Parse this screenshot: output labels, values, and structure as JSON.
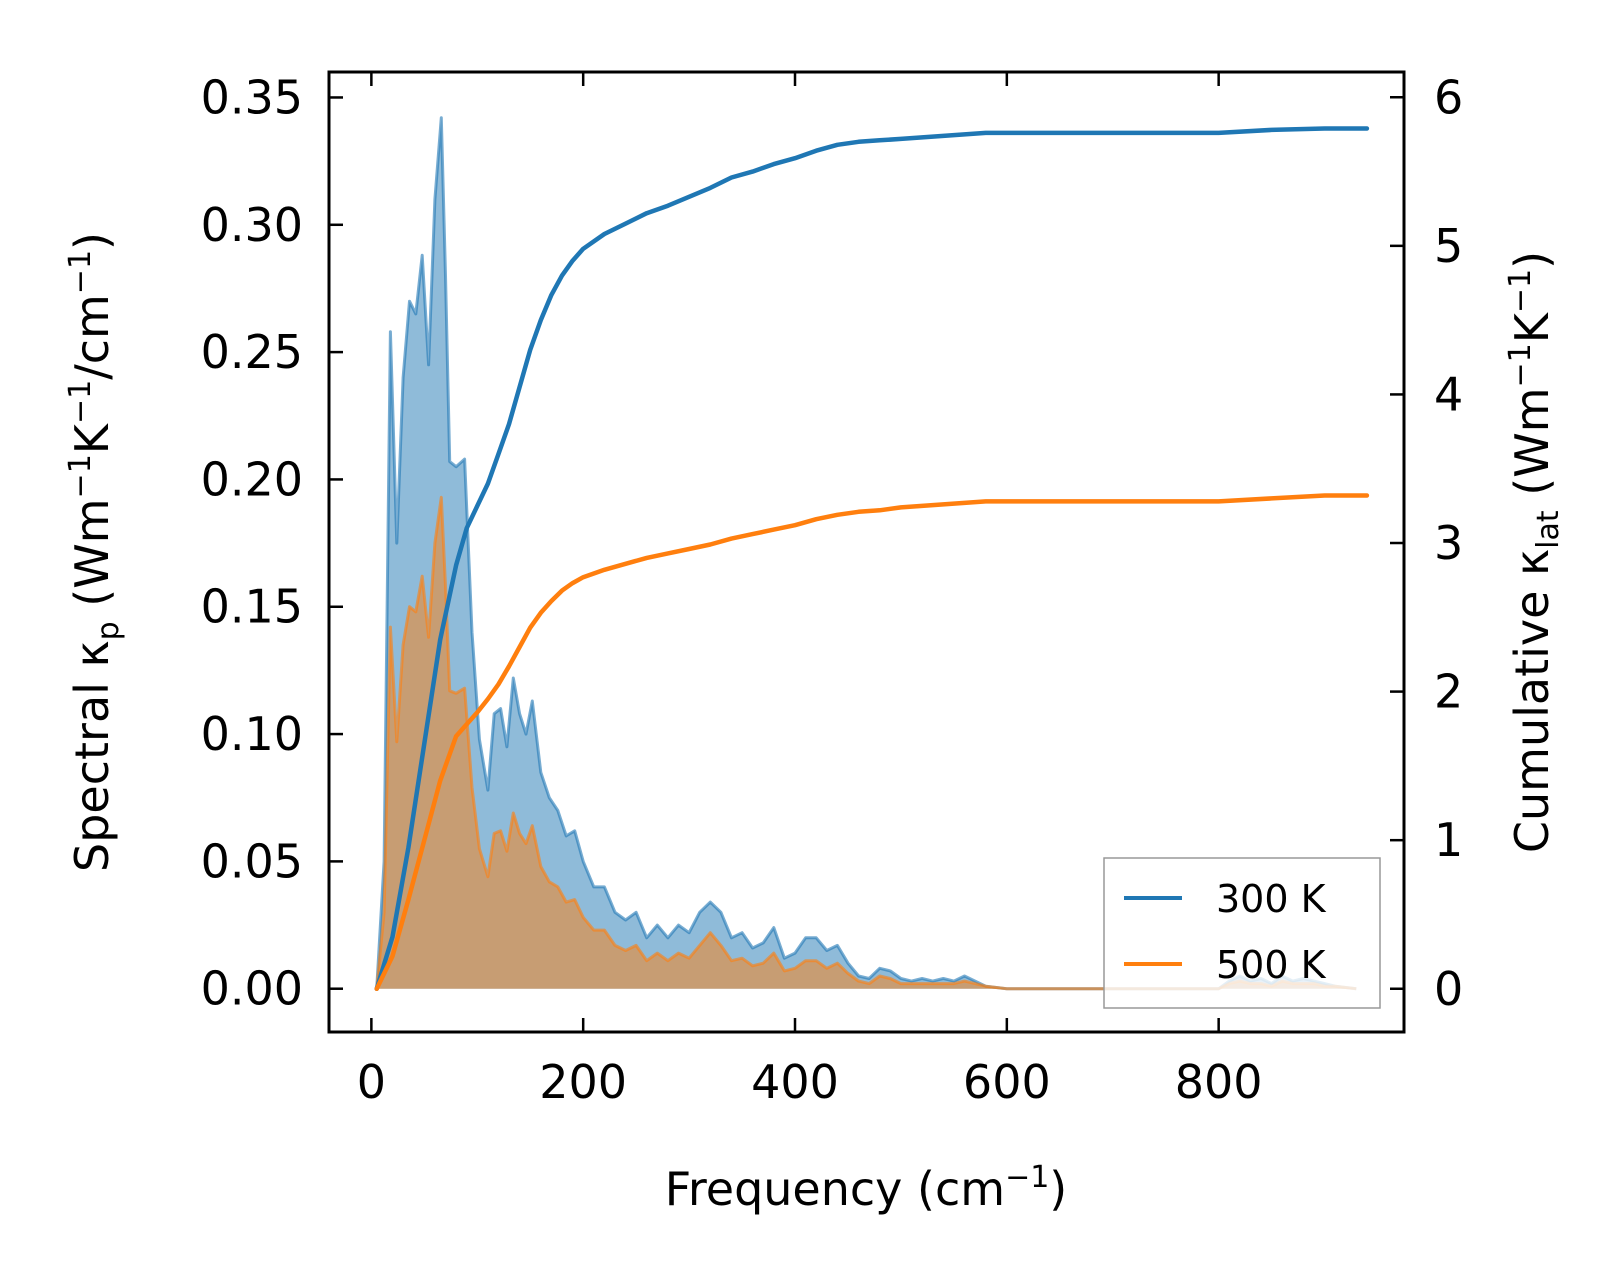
{
  "chart_data": {
    "type": "line",
    "title": "",
    "xlabel": "Frequency (cm",
    "xlabel_sup": "−1",
    "xlabel_end": ")",
    "ylabel_left": "Spectral κ",
    "ylabel_left_sub": "p",
    "ylabel_left_unit": " (Wm",
    "ylabel_left_sup1": "−1",
    "ylabel_left_unit2": "K",
    "ylabel_left_sup2": "−1",
    "ylabel_left_unit3": "/cm",
    "ylabel_left_sup3": "−1",
    "ylabel_left_end": ")",
    "ylabel_right": "Cumulative κ",
    "ylabel_right_sub": "lat",
    "ylabel_right_unit": " (Wm",
    "ylabel_right_sup1": "−1",
    "ylabel_right_unit2": "K",
    "ylabel_right_sup2": "−1",
    "ylabel_right_end": ")",
    "xlim": [
      -40,
      975
    ],
    "ylim_left": [
      -0.017,
      0.36
    ],
    "ylim_right": [
      -0.291,
      6.17
    ],
    "x_ticks": [
      0,
      200,
      400,
      600,
      800
    ],
    "x_tick_labels": [
      "0",
      "200",
      "400",
      "600",
      "800"
    ],
    "y_left_ticks": [
      0.0,
      0.05,
      0.1,
      0.15,
      0.2,
      0.25,
      0.3,
      0.35
    ],
    "y_left_tick_labels": [
      "0.00",
      "0.05",
      "0.10",
      "0.15",
      "0.20",
      "0.25",
      "0.30",
      "0.35"
    ],
    "y_right_ticks": [
      0,
      1,
      2,
      3,
      4,
      5,
      6
    ],
    "y_right_tick_labels": [
      "0",
      "1",
      "2",
      "3",
      "4",
      "5",
      "6"
    ],
    "legend": {
      "position": "lower-right",
      "entries": [
        "300 K",
        "500 K"
      ]
    },
    "colors": {
      "300 K": "#1f77b4",
      "500 K": "#ff7f0e"
    },
    "spectral_series": [
      {
        "name": "300 K",
        "axis": "left",
        "x": [
          5,
          12,
          18,
          24,
          30,
          36,
          42,
          48,
          54,
          60,
          66,
          70,
          74,
          80,
          88,
          95,
          102,
          110,
          116,
          122,
          128,
          134,
          140,
          146,
          152,
          160,
          168,
          176,
          184,
          192,
          200,
          210,
          220,
          230,
          240,
          250,
          260,
          270,
          280,
          290,
          300,
          310,
          320,
          330,
          340,
          350,
          360,
          370,
          380,
          390,
          400,
          410,
          420,
          430,
          440,
          450,
          460,
          470,
          480,
          490,
          500,
          510,
          520,
          530,
          540,
          550,
          560,
          570,
          580,
          600,
          650,
          700,
          750,
          790,
          800,
          810,
          820,
          830,
          840,
          850,
          860,
          870,
          880,
          890,
          900,
          910,
          930
        ],
        "y": [
          0.0,
          0.05,
          0.258,
          0.175,
          0.24,
          0.27,
          0.265,
          0.288,
          0.245,
          0.31,
          0.342,
          0.28,
          0.207,
          0.205,
          0.208,
          0.14,
          0.098,
          0.078,
          0.108,
          0.11,
          0.095,
          0.122,
          0.108,
          0.1,
          0.113,
          0.085,
          0.075,
          0.07,
          0.06,
          0.062,
          0.05,
          0.04,
          0.04,
          0.03,
          0.027,
          0.03,
          0.02,
          0.025,
          0.02,
          0.025,
          0.022,
          0.03,
          0.034,
          0.03,
          0.02,
          0.022,
          0.016,
          0.018,
          0.024,
          0.012,
          0.014,
          0.02,
          0.02,
          0.015,
          0.017,
          0.01,
          0.005,
          0.004,
          0.008,
          0.007,
          0.004,
          0.003,
          0.004,
          0.003,
          0.004,
          0.003,
          0.005,
          0.003,
          0.001,
          0.0,
          0.0,
          0.0,
          0.0,
          0.0,
          0.0,
          0.003,
          0.005,
          0.003,
          0.004,
          0.002,
          0.005,
          0.003,
          0.004,
          0.003,
          0.002,
          0.001,
          0.0
        ]
      },
      {
        "name": "500 K",
        "axis": "left",
        "x": [
          5,
          12,
          18,
          24,
          30,
          36,
          42,
          48,
          54,
          60,
          66,
          70,
          74,
          80,
          88,
          95,
          102,
          110,
          116,
          122,
          128,
          134,
          140,
          146,
          152,
          160,
          168,
          176,
          184,
          192,
          200,
          210,
          220,
          230,
          240,
          250,
          260,
          270,
          280,
          290,
          300,
          310,
          320,
          330,
          340,
          350,
          360,
          370,
          380,
          390,
          400,
          410,
          420,
          430,
          440,
          450,
          460,
          470,
          480,
          490,
          500,
          510,
          520,
          530,
          540,
          550,
          560,
          570,
          580,
          600,
          650,
          700,
          750,
          790,
          800,
          810,
          820,
          830,
          840,
          850,
          860,
          870,
          880,
          890,
          900,
          910,
          930
        ],
        "y": [
          0.0,
          0.03,
          0.142,
          0.097,
          0.135,
          0.15,
          0.148,
          0.162,
          0.138,
          0.175,
          0.193,
          0.158,
          0.117,
          0.116,
          0.118,
          0.079,
          0.055,
          0.044,
          0.061,
          0.062,
          0.054,
          0.069,
          0.061,
          0.057,
          0.064,
          0.048,
          0.042,
          0.04,
          0.034,
          0.035,
          0.028,
          0.023,
          0.023,
          0.017,
          0.015,
          0.017,
          0.011,
          0.014,
          0.011,
          0.014,
          0.012,
          0.017,
          0.022,
          0.017,
          0.011,
          0.012,
          0.009,
          0.01,
          0.014,
          0.007,
          0.008,
          0.011,
          0.011,
          0.008,
          0.01,
          0.006,
          0.003,
          0.002,
          0.005,
          0.004,
          0.002,
          0.002,
          0.002,
          0.002,
          0.002,
          0.002,
          0.003,
          0.002,
          0.001,
          0.0,
          0.0,
          0.0,
          0.0,
          0.0,
          0.0,
          0.002,
          0.003,
          0.002,
          0.002,
          0.001,
          0.003,
          0.002,
          0.002,
          0.002,
          0.001,
          0.001,
          0.0
        ]
      }
    ],
    "cumulative_series": [
      {
        "name": "300 K",
        "axis": "right",
        "x": [
          5,
          20,
          35,
          50,
          65,
          80,
          90,
          100,
          110,
          120,
          130,
          140,
          150,
          160,
          170,
          180,
          190,
          200,
          220,
          240,
          260,
          280,
          300,
          320,
          340,
          360,
          380,
          400,
          420,
          440,
          460,
          480,
          500,
          520,
          540,
          560,
          580,
          600,
          650,
          700,
          750,
          800,
          850,
          900,
          940
        ],
        "y": [
          0.0,
          0.35,
          0.95,
          1.65,
          2.35,
          2.85,
          3.1,
          3.25,
          3.4,
          3.6,
          3.8,
          4.05,
          4.3,
          4.5,
          4.67,
          4.8,
          4.9,
          4.98,
          5.08,
          5.15,
          5.22,
          5.27,
          5.33,
          5.39,
          5.46,
          5.5,
          5.55,
          5.59,
          5.64,
          5.68,
          5.7,
          5.71,
          5.72,
          5.73,
          5.74,
          5.75,
          5.76,
          5.76,
          5.76,
          5.76,
          5.76,
          5.76,
          5.78,
          5.79,
          5.79
        ]
      },
      {
        "name": "500 K",
        "axis": "right",
        "x": [
          5,
          20,
          35,
          50,
          65,
          80,
          90,
          100,
          110,
          120,
          130,
          140,
          150,
          160,
          170,
          180,
          190,
          200,
          220,
          240,
          260,
          280,
          300,
          320,
          340,
          360,
          380,
          400,
          420,
          440,
          460,
          480,
          500,
          520,
          540,
          560,
          580,
          600,
          650,
          700,
          750,
          800,
          850,
          900,
          940
        ],
        "y": [
          0.0,
          0.22,
          0.6,
          1.0,
          1.4,
          1.7,
          1.78,
          1.86,
          1.95,
          2.05,
          2.17,
          2.3,
          2.43,
          2.53,
          2.61,
          2.68,
          2.73,
          2.77,
          2.82,
          2.86,
          2.9,
          2.93,
          2.96,
          2.99,
          3.03,
          3.06,
          3.09,
          3.12,
          3.16,
          3.19,
          3.21,
          3.22,
          3.24,
          3.25,
          3.26,
          3.27,
          3.28,
          3.28,
          3.28,
          3.28,
          3.28,
          3.28,
          3.3,
          3.32,
          3.32
        ]
      }
    ]
  }
}
